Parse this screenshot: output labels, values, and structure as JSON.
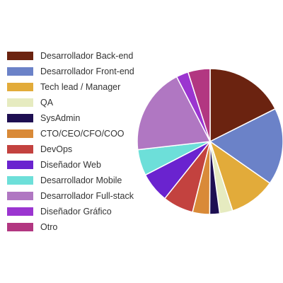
{
  "chart_data": {
    "type": "pie",
    "title": "",
    "legend_position": "left",
    "slices": [
      {
        "label": "Desarrollador Back-end",
        "value": 17.6,
        "color": "#6b2310"
      },
      {
        "label": "Desarrollador Front-end",
        "value": 17.1,
        "color": "#6b82c8"
      },
      {
        "label": "Tech lead / Manager",
        "value": 10.3,
        "color": "#e2ab3a"
      },
      {
        "label": "QA",
        "value": 2.9,
        "color": "#e6ebc0"
      },
      {
        "label": "SysAdmin",
        "value": 2.2,
        "color": "#1e0f52"
      },
      {
        "label": "CTO/CEO/CFO/COO",
        "value": 3.8,
        "color": "#d98a38"
      },
      {
        "label": "DevOps",
        "value": 6.8,
        "color": "#c3423f"
      },
      {
        "label": "Diseñador Web",
        "value": 6.7,
        "color": "#6a23cf"
      },
      {
        "label": "Desarrollador Mobile",
        "value": 5.8,
        "color": "#6ddfd9"
      },
      {
        "label": "Desarrollador Full-stack",
        "value": 19.2,
        "color": "#b077c2"
      },
      {
        "label": "Diseñador Gráfico",
        "value": 2.7,
        "color": "#9b35d0"
      },
      {
        "label": "Otro",
        "value": 4.9,
        "color": "#b23781"
      }
    ]
  }
}
